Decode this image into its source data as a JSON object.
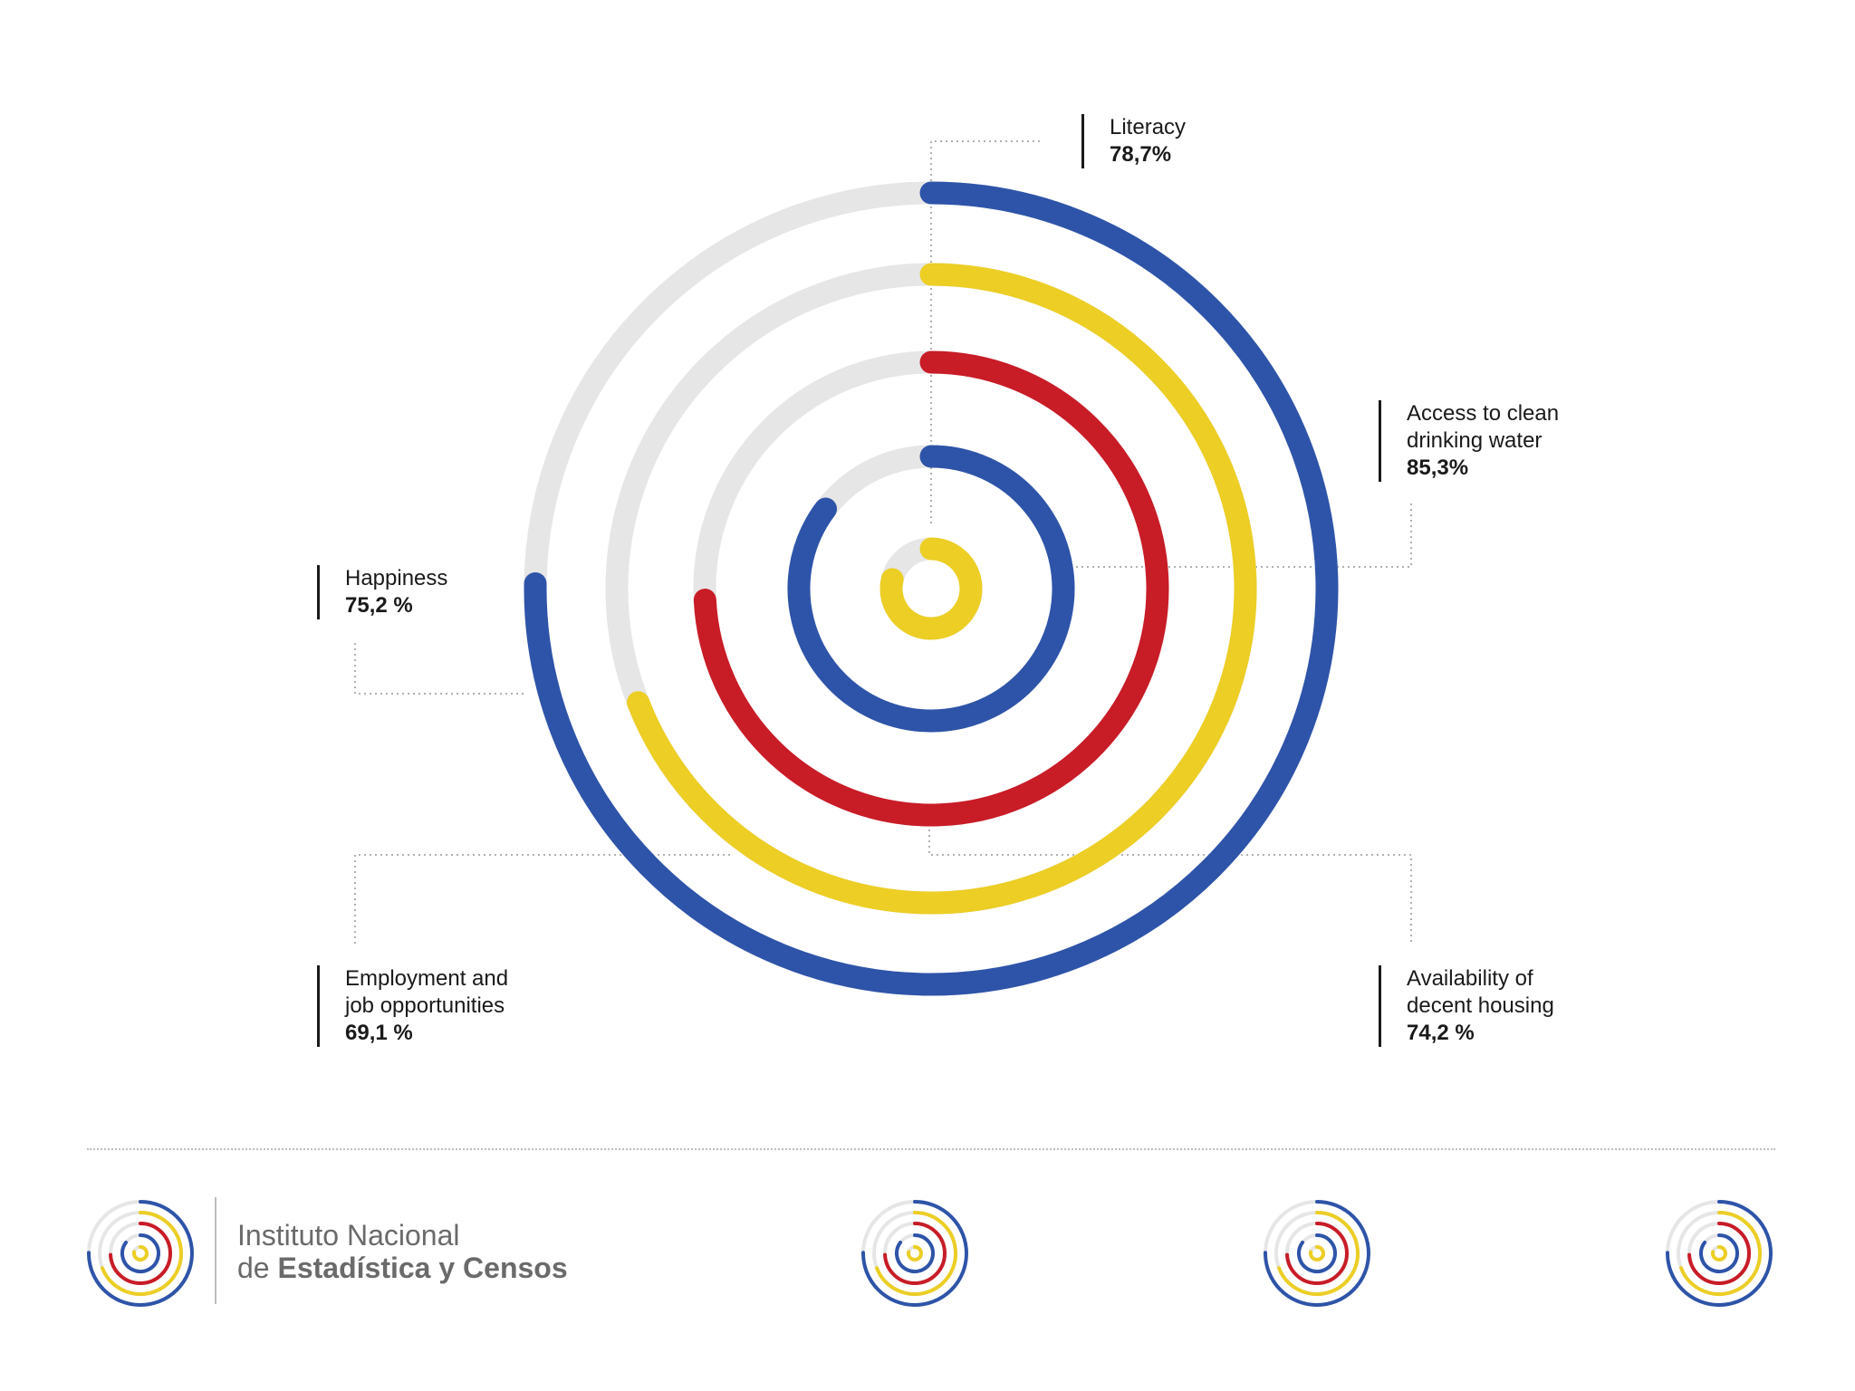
{
  "chart_data": {
    "type": "radial_bar",
    "title": "",
    "series": [
      {
        "name": "Happiness",
        "value": 75.2,
        "display": "75,2 %",
        "color": "#2e54a9"
      },
      {
        "name": "Employment and job opportunities",
        "value": 69.1,
        "display": "69,1 %",
        "color": "#ecce25"
      },
      {
        "name": "Availability of decent housing",
        "value": 74.2,
        "display": "74,2 %",
        "color": "#c81c27"
      },
      {
        "name": "Access to clean drinking water",
        "value": 85.3,
        "display": "85,3%",
        "color": "#2e54a9"
      },
      {
        "name": "Literacy",
        "value": 78.7,
        "display": "78,7%",
        "color": "#ecce25"
      }
    ],
    "max": 100,
    "track_color": "#e6e6e6"
  },
  "labels": {
    "literacy": {
      "name": "Literacy",
      "value": "78,7%"
    },
    "water": {
      "name": "Access to clean\ndrinking water",
      "value": "85,3%"
    },
    "happiness": {
      "name": "Happiness",
      "value": "75,2 %"
    },
    "employment": {
      "name": "Employment and\njob opportunities",
      "value": "69,1 %"
    },
    "housing": {
      "name": "Availability of\ndecent housing",
      "value": "74,2 %"
    }
  },
  "footer": {
    "org_line1": "Instituto Nacional",
    "org_line2_prefix": "de ",
    "org_line2_bold": "Estadística y Censos"
  }
}
